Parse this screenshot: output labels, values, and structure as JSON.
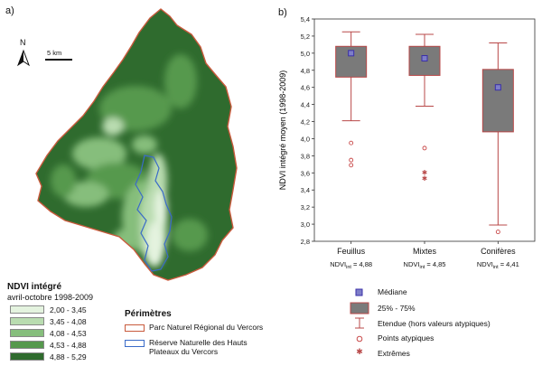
{
  "panel_a": {
    "label": "a)",
    "north_label": "N",
    "scale_label": "5 km",
    "map_title": "NDVI intégré",
    "map_subtitle": "avril-octobre 1998-2009",
    "legend": [
      {
        "label": "2,00 - 3,45",
        "color": "#e4f3df"
      },
      {
        "label": "3,45 - 4,08",
        "color": "#b9dcb0"
      },
      {
        "label": "4,08 - 4,53",
        "color": "#86be7c"
      },
      {
        "label": "4,53 - 4,88",
        "color": "#56994d"
      },
      {
        "label": "4,88 - 5,29",
        "color": "#2f6b2e"
      }
    ],
    "perimetres_title": "Périmètres",
    "perimetres": [
      {
        "label": "Parc Naturel Régional du Vercors",
        "color": "#c85a3c"
      },
      {
        "label": "Réserve Naturelle des Hauts Plateaux du Vercors",
        "color": "#3a6bc8"
      }
    ]
  },
  "panel_b": {
    "label": "b)",
    "legend": [
      {
        "label": "Médiane",
        "symbol": "median"
      },
      {
        "label": "25% - 75%",
        "symbol": "box"
      },
      {
        "label": "Etendue (hors valeurs atypiques)",
        "symbol": "whisker"
      },
      {
        "label": "Points atypiques",
        "symbol": "outlier"
      },
      {
        "label": "Extrêmes",
        "symbol": "extreme"
      }
    ]
  },
  "chart_data": {
    "type": "box",
    "title": "",
    "ylabel": "NDVI intégré moyen (1998-2009)",
    "ylim": [
      2.8,
      5.4
    ],
    "yticks": [
      "2,8",
      "3,0",
      "3,2",
      "3,4",
      "3,6",
      "3,8",
      "4,0",
      "4,2",
      "4,4",
      "4,6",
      "4,8",
      "5,0",
      "5,2",
      "5,4"
    ],
    "categories": [
      "Feuillus",
      "Mixtes",
      "Conifères"
    ],
    "subtitles": [
      "NDVI",
      "NDVI",
      "NDVI"
    ],
    "subtitle_sub": "int",
    "subtitle_values": [
      "= 4,88",
      "= 4,85",
      "= 4,41"
    ],
    "series": [
      {
        "median": 5.0,
        "q1": 4.72,
        "q3": 5.08,
        "whisker_low": 4.21,
        "whisker_high": 5.25,
        "outliers": [
          3.95,
          3.75,
          3.69
        ],
        "extremes": []
      },
      {
        "median": 4.94,
        "q1": 4.74,
        "q3": 5.08,
        "whisker_low": 4.38,
        "whisker_high": 5.22,
        "outliers": [
          3.89
        ],
        "extremes": [
          3.61,
          3.54
        ]
      },
      {
        "median": 4.6,
        "q1": 4.08,
        "q3": 4.81,
        "whisker_low": 2.99,
        "whisker_high": 5.12,
        "outliers": [
          2.91
        ],
        "extremes": []
      }
    ],
    "colors": {
      "box": "#7a7a7a",
      "box_edge": "#b84848",
      "whisker": "#b84848",
      "median": "#3a2fa8",
      "outlier": "#c84848",
      "extreme": "#b84848"
    }
  }
}
